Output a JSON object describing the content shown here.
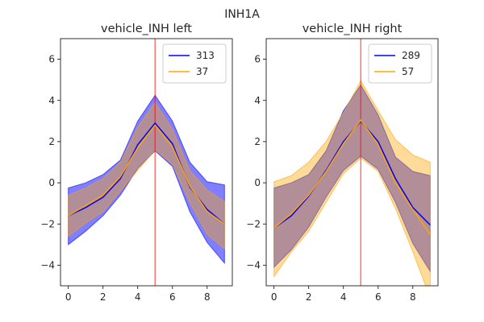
{
  "figure": {
    "suptitle": "INH1A",
    "colors": {
      "series1": "#0000ff",
      "series2": "#ffa500",
      "vline": "#ff0000"
    }
  },
  "chart_data": [
    {
      "type": "line",
      "title": "vehicle_INH left",
      "xlabel": "",
      "ylabel": "",
      "xlim": [
        -0.45,
        9.45
      ],
      "ylim": [
        -5,
        7
      ],
      "xticks": [
        0,
        2,
        4,
        6,
        8
      ],
      "yticks": [
        -4,
        -2,
        0,
        2,
        4,
        6
      ],
      "vline_x": 5,
      "legend_position": "top-right",
      "grid": false,
      "x": [
        0,
        1,
        2,
        3,
        4,
        5,
        6,
        7,
        8,
        9
      ],
      "series": [
        {
          "name": "313",
          "color": "#0000ff",
          "mean": [
            -1.6,
            -1.2,
            -0.7,
            0.2,
            1.85,
            2.9,
            1.9,
            -0.2,
            -1.3,
            -2.0
          ],
          "upper": [
            -0.25,
            0.0,
            0.4,
            1.1,
            3.0,
            4.25,
            3.0,
            1.0,
            0.05,
            -0.1
          ],
          "lower": [
            -3.0,
            -2.35,
            -1.6,
            -0.6,
            0.7,
            1.55,
            0.8,
            -1.4,
            -2.9,
            -3.9
          ]
        },
        {
          "name": "37",
          "color": "#ffa500",
          "mean": [
            -1.6,
            -1.1,
            -0.6,
            0.3,
            1.7,
            2.8,
            1.75,
            -0.15,
            -1.4,
            -2.0
          ],
          "upper": [
            -0.6,
            -0.25,
            0.2,
            1.0,
            2.7,
            3.9,
            2.6,
            0.6,
            -0.35,
            -0.9
          ],
          "lower": [
            -2.6,
            -1.95,
            -1.4,
            -0.4,
            0.6,
            1.6,
            0.9,
            -0.95,
            -2.5,
            -3.2
          ]
        }
      ]
    },
    {
      "type": "line",
      "title": "vehicle_INH right",
      "xlabel": "",
      "ylabel": "",
      "xlim": [
        -0.45,
        9.45
      ],
      "ylim": [
        -5,
        7
      ],
      "xticks": [
        0,
        2,
        4,
        6,
        8
      ],
      "yticks": [
        -4,
        -2,
        0,
        2,
        4,
        6
      ],
      "vline_x": 5,
      "legend_position": "top-right",
      "grid": false,
      "x": [
        0,
        1,
        2,
        3,
        4,
        5,
        6,
        7,
        8,
        9
      ],
      "series": [
        {
          "name": "289",
          "color": "#0000ff",
          "mean": [
            -2.2,
            -1.6,
            -0.65,
            0.6,
            2.0,
            3.0,
            2.0,
            0.2,
            -1.2,
            -2.05
          ],
          "upper": [
            -0.25,
            0.0,
            0.4,
            1.55,
            3.5,
            4.75,
            3.3,
            1.25,
            0.55,
            0.35
          ],
          "lower": [
            -4.1,
            -3.25,
            -2.15,
            -0.7,
            0.6,
            1.3,
            0.65,
            -0.95,
            -2.95,
            -4.3
          ]
        },
        {
          "name": "57",
          "color": "#ffa500",
          "mean": [
            -2.2,
            -1.5,
            -0.6,
            0.55,
            1.9,
            3.05,
            1.85,
            0.0,
            -1.3,
            -2.5
          ],
          "upper": [
            0.05,
            0.35,
            1.0,
            2.0,
            3.4,
            4.95,
            3.5,
            2.1,
            1.35,
            1.0
          ],
          "lower": [
            -4.55,
            -3.35,
            -2.35,
            -0.95,
            0.45,
            1.2,
            0.55,
            -1.25,
            -3.35,
            -5.6
          ]
        }
      ]
    }
  ]
}
